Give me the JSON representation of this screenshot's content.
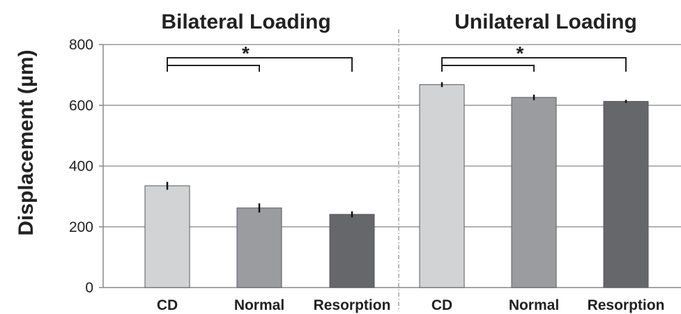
{
  "chart_data": {
    "type": "bar",
    "ylabel": "Displacement (µm)",
    "ylim": [
      0,
      800
    ],
    "yticks": [
      0,
      200,
      400,
      600,
      800
    ],
    "grid": true,
    "panels": [
      {
        "title": "Bilateral Loading",
        "categories": [
          "CD",
          "Normal",
          "Resorption"
        ],
        "values": [
          335,
          262,
          241
        ],
        "errors": [
          13,
          15,
          10
        ],
        "colors": [
          "#d2d3d5",
          "#9b9ca0",
          "#66676b"
        ],
        "significance": "*"
      },
      {
        "title": "Unilateral Loading",
        "categories": [
          "CD",
          "Normal",
          "Resorption"
        ],
        "values": [
          668,
          626,
          613
        ],
        "errors": [
          8,
          9,
          5
        ],
        "colors": [
          "#d2d3d5",
          "#9b9ca0",
          "#66676b"
        ],
        "significance": "*"
      }
    ]
  }
}
